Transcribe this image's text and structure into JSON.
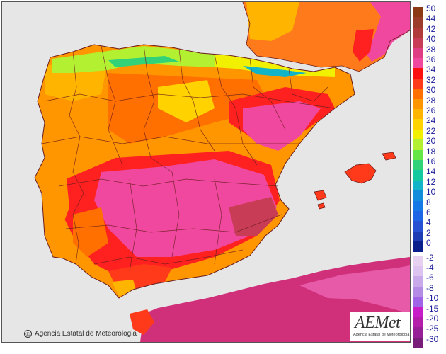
{
  "map": {
    "credit_symbol": "©",
    "credit_text": "Agencia Estatal de Meteorologia",
    "logo_text": "AEMet",
    "logo_subtext": "Agencia Estatal de Meteorología",
    "colors": {
      "sea": "#e6e6e6",
      "border_lines": "#6b1d1d",
      "africa_base": "#d0307a"
    }
  },
  "legend": {
    "items": [
      {
        "label": "50",
        "color": "#8b3a15"
      },
      {
        "label": "44",
        "color": "#9c3c2a"
      },
      {
        "label": "42",
        "color": "#b13b3b"
      },
      {
        "label": "40",
        "color": "#c93c56"
      },
      {
        "label": "38",
        "color": "#df3d84"
      },
      {
        "label": "36",
        "color": "#f0489f"
      },
      {
        "label": "34",
        "color": "#ff1010"
      },
      {
        "label": "32",
        "color": "#ff3a1a"
      },
      {
        "label": "30",
        "color": "#ff7000"
      },
      {
        "label": "28",
        "color": "#ff9600"
      },
      {
        "label": "26",
        "color": "#ffb400"
      },
      {
        "label": "24",
        "color": "#ffd200"
      },
      {
        "label": "22",
        "color": "#f0f000"
      },
      {
        "label": "20",
        "color": "#b4f032"
      },
      {
        "label": "18",
        "color": "#64e646"
      },
      {
        "label": "16",
        "color": "#32d278"
      },
      {
        "label": "14",
        "color": "#14c8a0"
      },
      {
        "label": "12",
        "color": "#14b4c8"
      },
      {
        "label": "10",
        "color": "#148cdc"
      },
      {
        "label": "8",
        "color": "#1478e6"
      },
      {
        "label": "6",
        "color": "#1e64e6"
      },
      {
        "label": "4",
        "color": "#2850d2"
      },
      {
        "label": "2",
        "color": "#1e3cb4"
      },
      {
        "label": "0",
        "color": "#0a1e8c"
      },
      {
        "label": "-2",
        "color": "#e6d2f0"
      },
      {
        "label": "-4",
        "color": "#dcc3f0"
      },
      {
        "label": "-6",
        "color": "#c8aaeb"
      },
      {
        "label": "-8",
        "color": "#b48ce6"
      },
      {
        "label": "-10",
        "color": "#a064e6"
      },
      {
        "label": "-15",
        "color": "#c81ec8"
      },
      {
        "label": "-20",
        "color": "#b41eaa"
      },
      {
        "label": "-25",
        "color": "#961e96"
      },
      {
        "label": "-30",
        "color": "#781e78"
      }
    ]
  }
}
